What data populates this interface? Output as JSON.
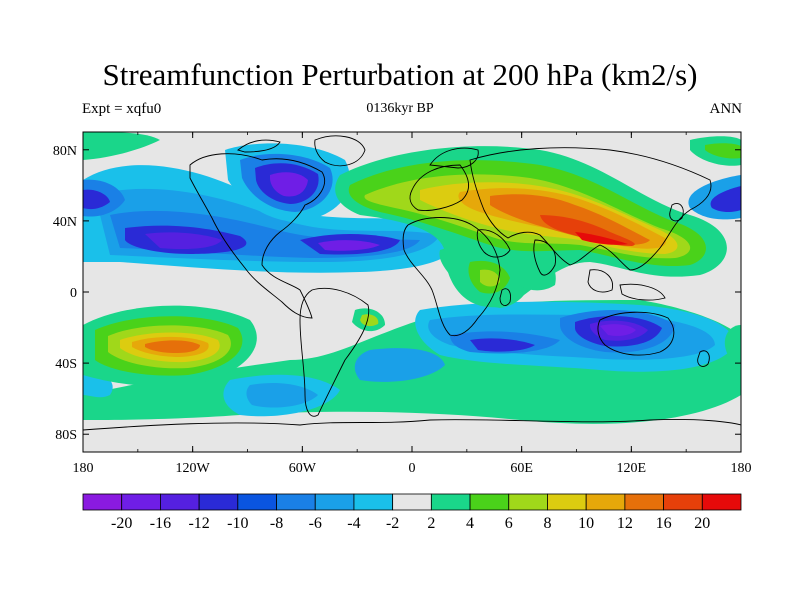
{
  "title": "Streamfunction Perturbation at 200 hPa (km2/s)",
  "subtitle_left": "Expt = xqfu0",
  "subtitle_center": "0136kyr BP",
  "subtitle_right": "ANN",
  "map": {
    "lon_labels": [
      "180",
      "120W",
      "60W",
      "0",
      "60E",
      "120E",
      "180"
    ],
    "lat_labels": [
      "80N",
      "40N",
      "0",
      "40S",
      "80S"
    ]
  },
  "colorbar": {
    "colors": [
      "#8a1ae0",
      "#6f1ee6",
      "#5520e0",
      "#2a2ad6",
      "#0a55e0",
      "#1a80e6",
      "#1aa0e8",
      "#1ac0ea",
      "#e6e6e6",
      "#1ad68a",
      "#4ad21a",
      "#a0d81a",
      "#dccc10",
      "#e6a80a",
      "#e6700a",
      "#e6400a",
      "#e60a0a"
    ],
    "labels": [
      "-20",
      "-16",
      "-12",
      "-10",
      "-8",
      "-6",
      "-4",
      "-2",
      "2",
      "4",
      "6",
      "8",
      "10",
      "12",
      "16",
      "20"
    ]
  }
}
